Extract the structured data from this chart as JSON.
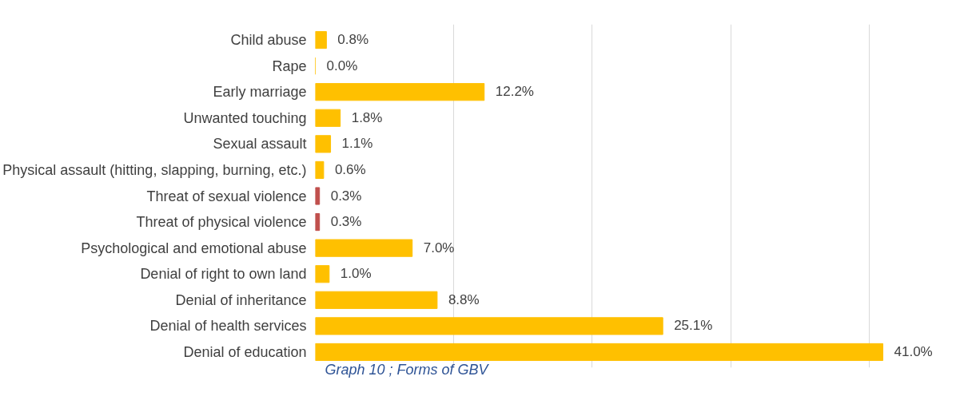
{
  "chart_data": {
    "type": "bar",
    "orientation": "horizontal",
    "categories": [
      "Child abuse",
      "Rape",
      "Early marriage",
      "Unwanted touching",
      "Sexual assault",
      "Physical assault (hitting, slapping, burning, etc.)",
      "Threat of sexual violence",
      "Threat of physical violence",
      "Psychological and emotional abuse",
      "Denial of right to own land",
      "Denial of inheritance",
      "Denial of health services",
      "Denial of education"
    ],
    "values": [
      0.8,
      0.0,
      12.2,
      1.8,
      1.1,
      0.6,
      0.3,
      0.3,
      7.0,
      1.0,
      8.8,
      25.1,
      41.0
    ],
    "colors": [
      "#ffc000",
      "#ffc000",
      "#ffc000",
      "#ffc000",
      "#ffc000",
      "#ffc000",
      "#c0504d",
      "#c0504d",
      "#ffc000",
      "#ffc000",
      "#ffc000",
      "#ffc000",
      "#ffc000"
    ],
    "value_labels": [
      "0.8%",
      "0.0%",
      "12.2%",
      "1.8%",
      "1.1%",
      "0.6%",
      "0.3%",
      "0.3%",
      "7.0%",
      "1.0%",
      "8.8%",
      "25.1%",
      "41.0%"
    ],
    "grid": "x",
    "tick_labels": "y",
    "annotations": [
      "Graph 10 ; Forms of GBV"
    ]
  }
}
